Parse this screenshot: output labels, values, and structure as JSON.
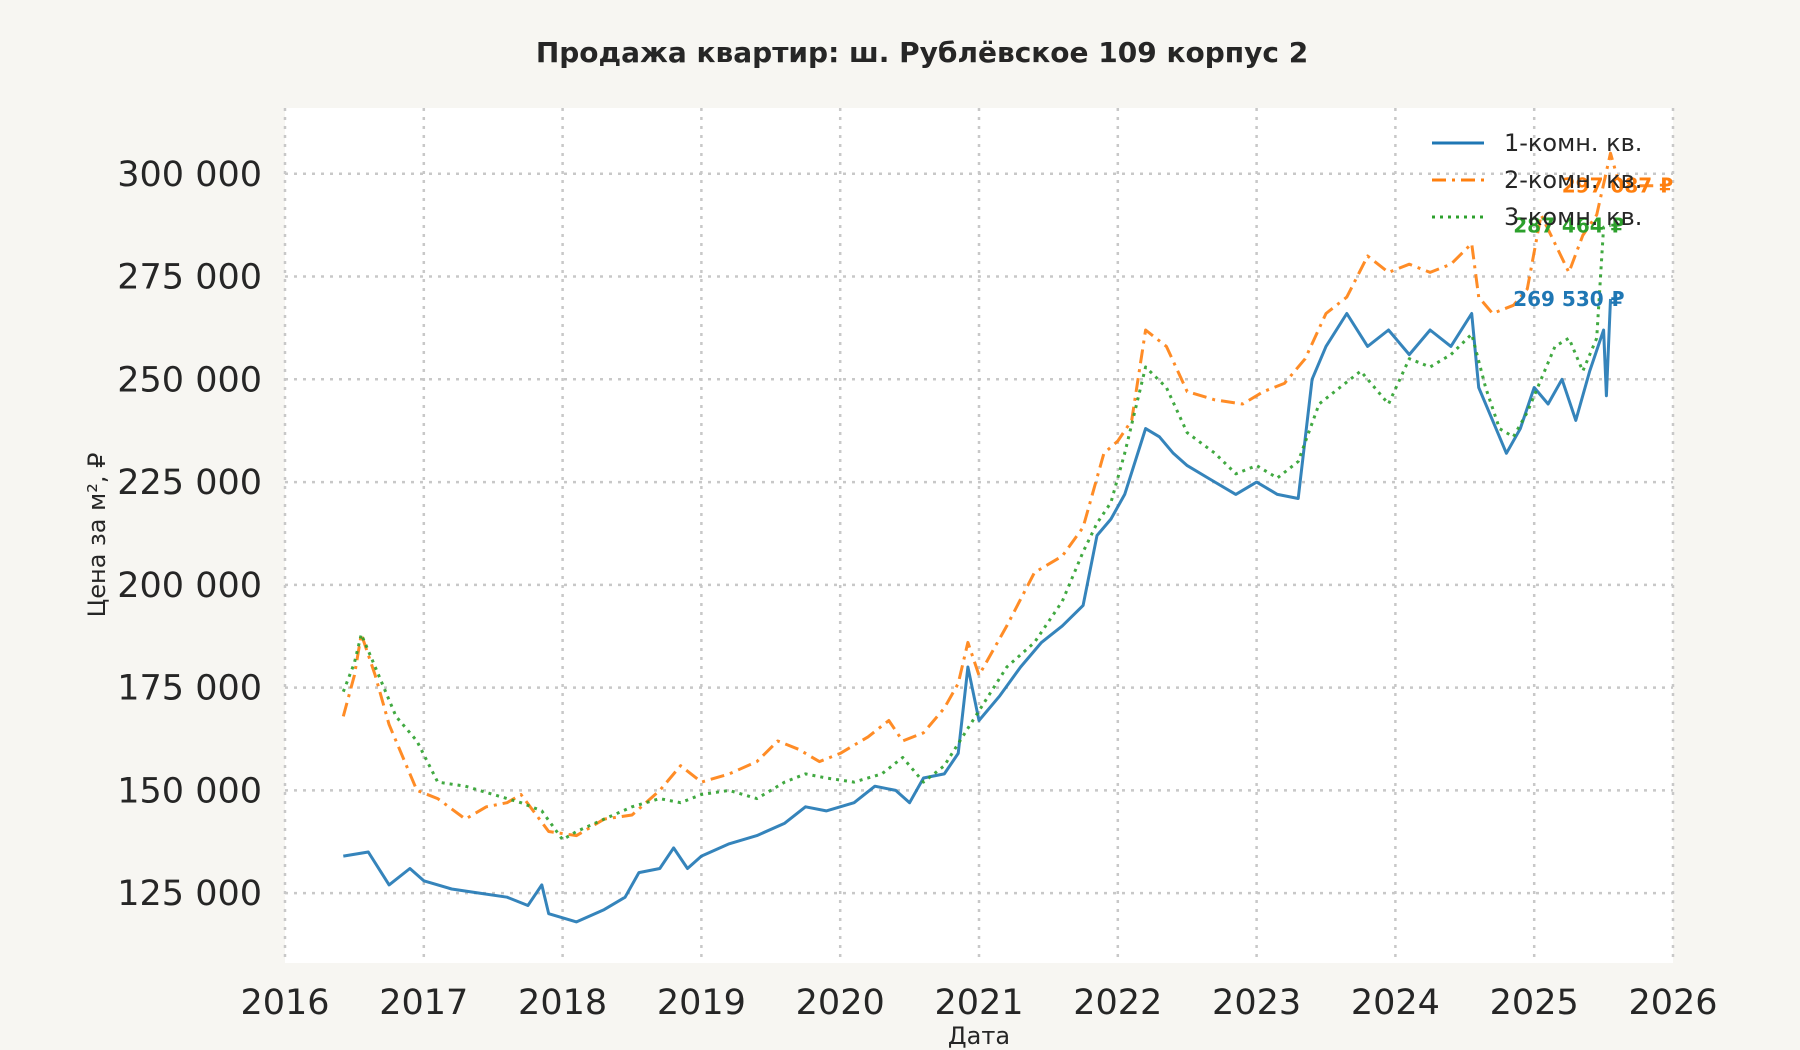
{
  "chart_data": {
    "type": "line",
    "title": "Продажа квартир: ш. Рублёвское 109 корпус 2",
    "xlabel": "Дата",
    "ylabel": "Цена за м², ₽",
    "xlim": [
      2016.0,
      2026.0
    ],
    "ylim": [
      108000,
      316000
    ],
    "x_ticks": [
      "2016",
      "2017",
      "2018",
      "2019",
      "2020",
      "2021",
      "2022",
      "2023",
      "2024",
      "2025",
      "2026"
    ],
    "y_ticks": [
      125000,
      150000,
      175000,
      200000,
      225000,
      250000,
      275000,
      300000
    ],
    "y_tick_labels": [
      "125 000",
      "150 000",
      "175 000",
      "200 000",
      "225 000",
      "250 000",
      "275 000",
      "300 000"
    ],
    "grid": true,
    "legend_position": "top-right",
    "series": [
      {
        "name": "1-комн. кв.",
        "color": "#1f77b4",
        "line_style": "solid",
        "end_label": "269 530 ₽",
        "x": [
          2016.42,
          2016.6,
          2016.75,
          2016.9,
          2017.0,
          2017.2,
          2017.4,
          2017.6,
          2017.75,
          2017.85,
          2017.9,
          2018.0,
          2018.1,
          2018.3,
          2018.45,
          2018.55,
          2018.7,
          2018.8,
          2018.9,
          2019.0,
          2019.2,
          2019.4,
          2019.6,
          2019.75,
          2019.9,
          2020.1,
          2020.25,
          2020.4,
          2020.5,
          2020.6,
          2020.75,
          2020.85,
          2020.92,
          2021.0,
          2021.15,
          2021.3,
          2021.45,
          2021.6,
          2021.75,
          2021.85,
          2021.95,
          2022.05,
          2022.2,
          2022.3,
          2022.4,
          2022.5,
          2022.65,
          2022.85,
          2023.0,
          2023.15,
          2023.3,
          2023.4,
          2023.5,
          2023.65,
          2023.8,
          2023.95,
          2024.1,
          2024.25,
          2024.4,
          2024.55,
          2024.6,
          2024.7,
          2024.8,
          2024.9,
          2025.0,
          2025.1,
          2025.2,
          2025.3,
          2025.4,
          2025.5,
          2025.52,
          2025.55
        ],
        "values": [
          134000,
          135000,
          127000,
          131000,
          128000,
          126000,
          125000,
          124000,
          122000,
          127000,
          120000,
          119000,
          118000,
          121000,
          124000,
          130000,
          131000,
          136000,
          131000,
          134000,
          137000,
          139000,
          142000,
          146000,
          145000,
          147000,
          151000,
          150000,
          147000,
          153000,
          154000,
          159000,
          180000,
          167000,
          173000,
          180000,
          186000,
          190000,
          195000,
          212000,
          216000,
          222000,
          238000,
          236000,
          232000,
          229000,
          226000,
          222000,
          225000,
          222000,
          221000,
          250000,
          258000,
          266000,
          258000,
          262000,
          256000,
          262000,
          258000,
          266000,
          248000,
          240000,
          232000,
          238000,
          248000,
          244000,
          250000,
          240000,
          252000,
          262000,
          246000,
          269530
        ]
      },
      {
        "name": "2-комн. кв.",
        "color": "#ff7f0e",
        "line_style": "dash-dot",
        "end_label": "297 087 ₽",
        "x": [
          2016.42,
          2016.5,
          2016.55,
          2016.65,
          2016.75,
          2016.85,
          2016.95,
          2017.1,
          2017.3,
          2017.45,
          2017.6,
          2017.7,
          2017.9,
          2018.1,
          2018.3,
          2018.5,
          2018.7,
          2018.85,
          2019.0,
          2019.2,
          2019.4,
          2019.55,
          2019.7,
          2019.85,
          2020.0,
          2020.2,
          2020.35,
          2020.45,
          2020.6,
          2020.75,
          2020.85,
          2020.92,
          2021.0,
          2021.2,
          2021.4,
          2021.6,
          2021.75,
          2021.9,
          2022.0,
          2022.1,
          2022.2,
          2022.35,
          2022.5,
          2022.7,
          2022.9,
          2023.05,
          2023.2,
          2023.35,
          2023.5,
          2023.65,
          2023.8,
          2023.95,
          2024.1,
          2024.25,
          2024.4,
          2024.55,
          2024.6,
          2024.7,
          2024.85,
          2024.95,
          2025.05,
          2025.15,
          2025.25,
          2025.35,
          2025.45,
          2025.55,
          2025.6,
          2025.65,
          2025.8,
          2025.9
        ],
        "values": [
          168000,
          178000,
          188000,
          178000,
          166000,
          158000,
          150000,
          148000,
          143000,
          146000,
          147000,
          149000,
          140000,
          139000,
          143000,
          144000,
          150000,
          156000,
          152000,
          154000,
          157000,
          162000,
          160000,
          157000,
          159000,
          163000,
          167000,
          162000,
          164000,
          170000,
          176000,
          186000,
          178000,
          190000,
          203000,
          207000,
          214000,
          232000,
          235000,
          240000,
          262000,
          258000,
          247000,
          245000,
          244000,
          247000,
          249000,
          255000,
          266000,
          270000,
          280000,
          276000,
          278000,
          276000,
          278000,
          283000,
          270000,
          266000,
          268000,
          272000,
          290000,
          283000,
          276000,
          285000,
          290000,
          305000,
          299000,
          297087,
          297087,
          297087
        ]
      },
      {
        "name": "3-комн. кв.",
        "color": "#2ca02c",
        "line_style": "dotted",
        "end_label": "287 464 ₽",
        "x": [
          2016.42,
          2016.5,
          2016.55,
          2016.65,
          2016.8,
          2016.95,
          2017.1,
          2017.3,
          2017.5,
          2017.7,
          2017.85,
          2018.0,
          2018.1,
          2018.3,
          2018.5,
          2018.7,
          2018.85,
          2019.0,
          2019.2,
          2019.4,
          2019.6,
          2019.75,
          2019.9,
          2020.1,
          2020.3,
          2020.45,
          2020.6,
          2020.75,
          2020.9,
          2021.05,
          2021.2,
          2021.4,
          2021.6,
          2021.75,
          2021.85,
          2021.95,
          2022.05,
          2022.2,
          2022.35,
          2022.5,
          2022.7,
          2022.85,
          2023.0,
          2023.15,
          2023.3,
          2023.45,
          2023.6,
          2023.75,
          2023.95,
          2024.1,
          2024.25,
          2024.4,
          2024.55,
          2024.65,
          2024.75,
          2024.85,
          2024.95,
          2025.05,
          2025.15,
          2025.25,
          2025.35,
          2025.45,
          2025.5,
          2025.55
        ],
        "values": [
          174000,
          181000,
          188000,
          180000,
          168000,
          162000,
          152000,
          151000,
          149000,
          147000,
          145000,
          138000,
          140000,
          143000,
          146000,
          148000,
          147000,
          149000,
          150000,
          148000,
          152000,
          154000,
          153000,
          152000,
          154000,
          158000,
          152000,
          156000,
          164000,
          172000,
          180000,
          186000,
          196000,
          208000,
          215000,
          220000,
          232000,
          253000,
          248000,
          237000,
          232000,
          227000,
          229000,
          226000,
          230000,
          244000,
          248000,
          252000,
          244000,
          255000,
          253000,
          256000,
          261000,
          248000,
          238000,
          236000,
          242000,
          250000,
          258000,
          260000,
          252000,
          260000,
          287000,
          287464
        ]
      }
    ]
  }
}
